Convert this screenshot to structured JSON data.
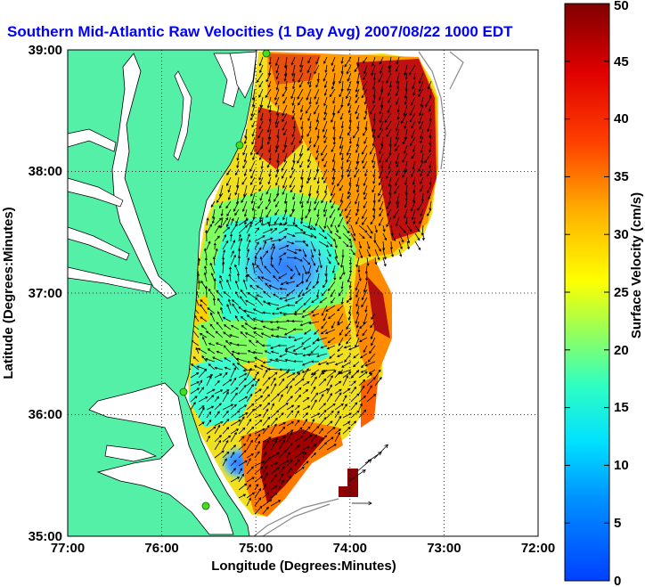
{
  "title": "Southern Mid-Atlantic Raw Velocities (1 Day Avg) 2007/08/22 1000 EDT",
  "xlabel": "Longitude (Degrees:Minutes)",
  "ylabel": "Latitude (Degrees:Minutes)",
  "colorbar_label": "Surface Velocity (cm/s)",
  "x_ticks": [
    "77:00",
    "76:00",
    "75:00",
    "74:00",
    "73:00",
    "72:00"
  ],
  "y_ticks": [
    "35:00",
    "36:00",
    "37:00",
    "38:00",
    "39:00"
  ],
  "colorbar_ticks": [
    "0",
    "5",
    "10",
    "15",
    "20",
    "25",
    "30",
    "35",
    "40",
    "45",
    "50"
  ],
  "colors": {
    "land": "#55f0a8",
    "water": "#ffffff",
    "title": "#0000ff",
    "station": "#44dd22",
    "arrows": "#000000"
  },
  "map_data": {
    "lon_range": [
      -77,
      -72
    ],
    "lat_range": [
      35,
      39
    ],
    "velocity_range_cm_s": [
      0,
      50
    ],
    "grid": "dotted",
    "colormap": "jet"
  }
}
